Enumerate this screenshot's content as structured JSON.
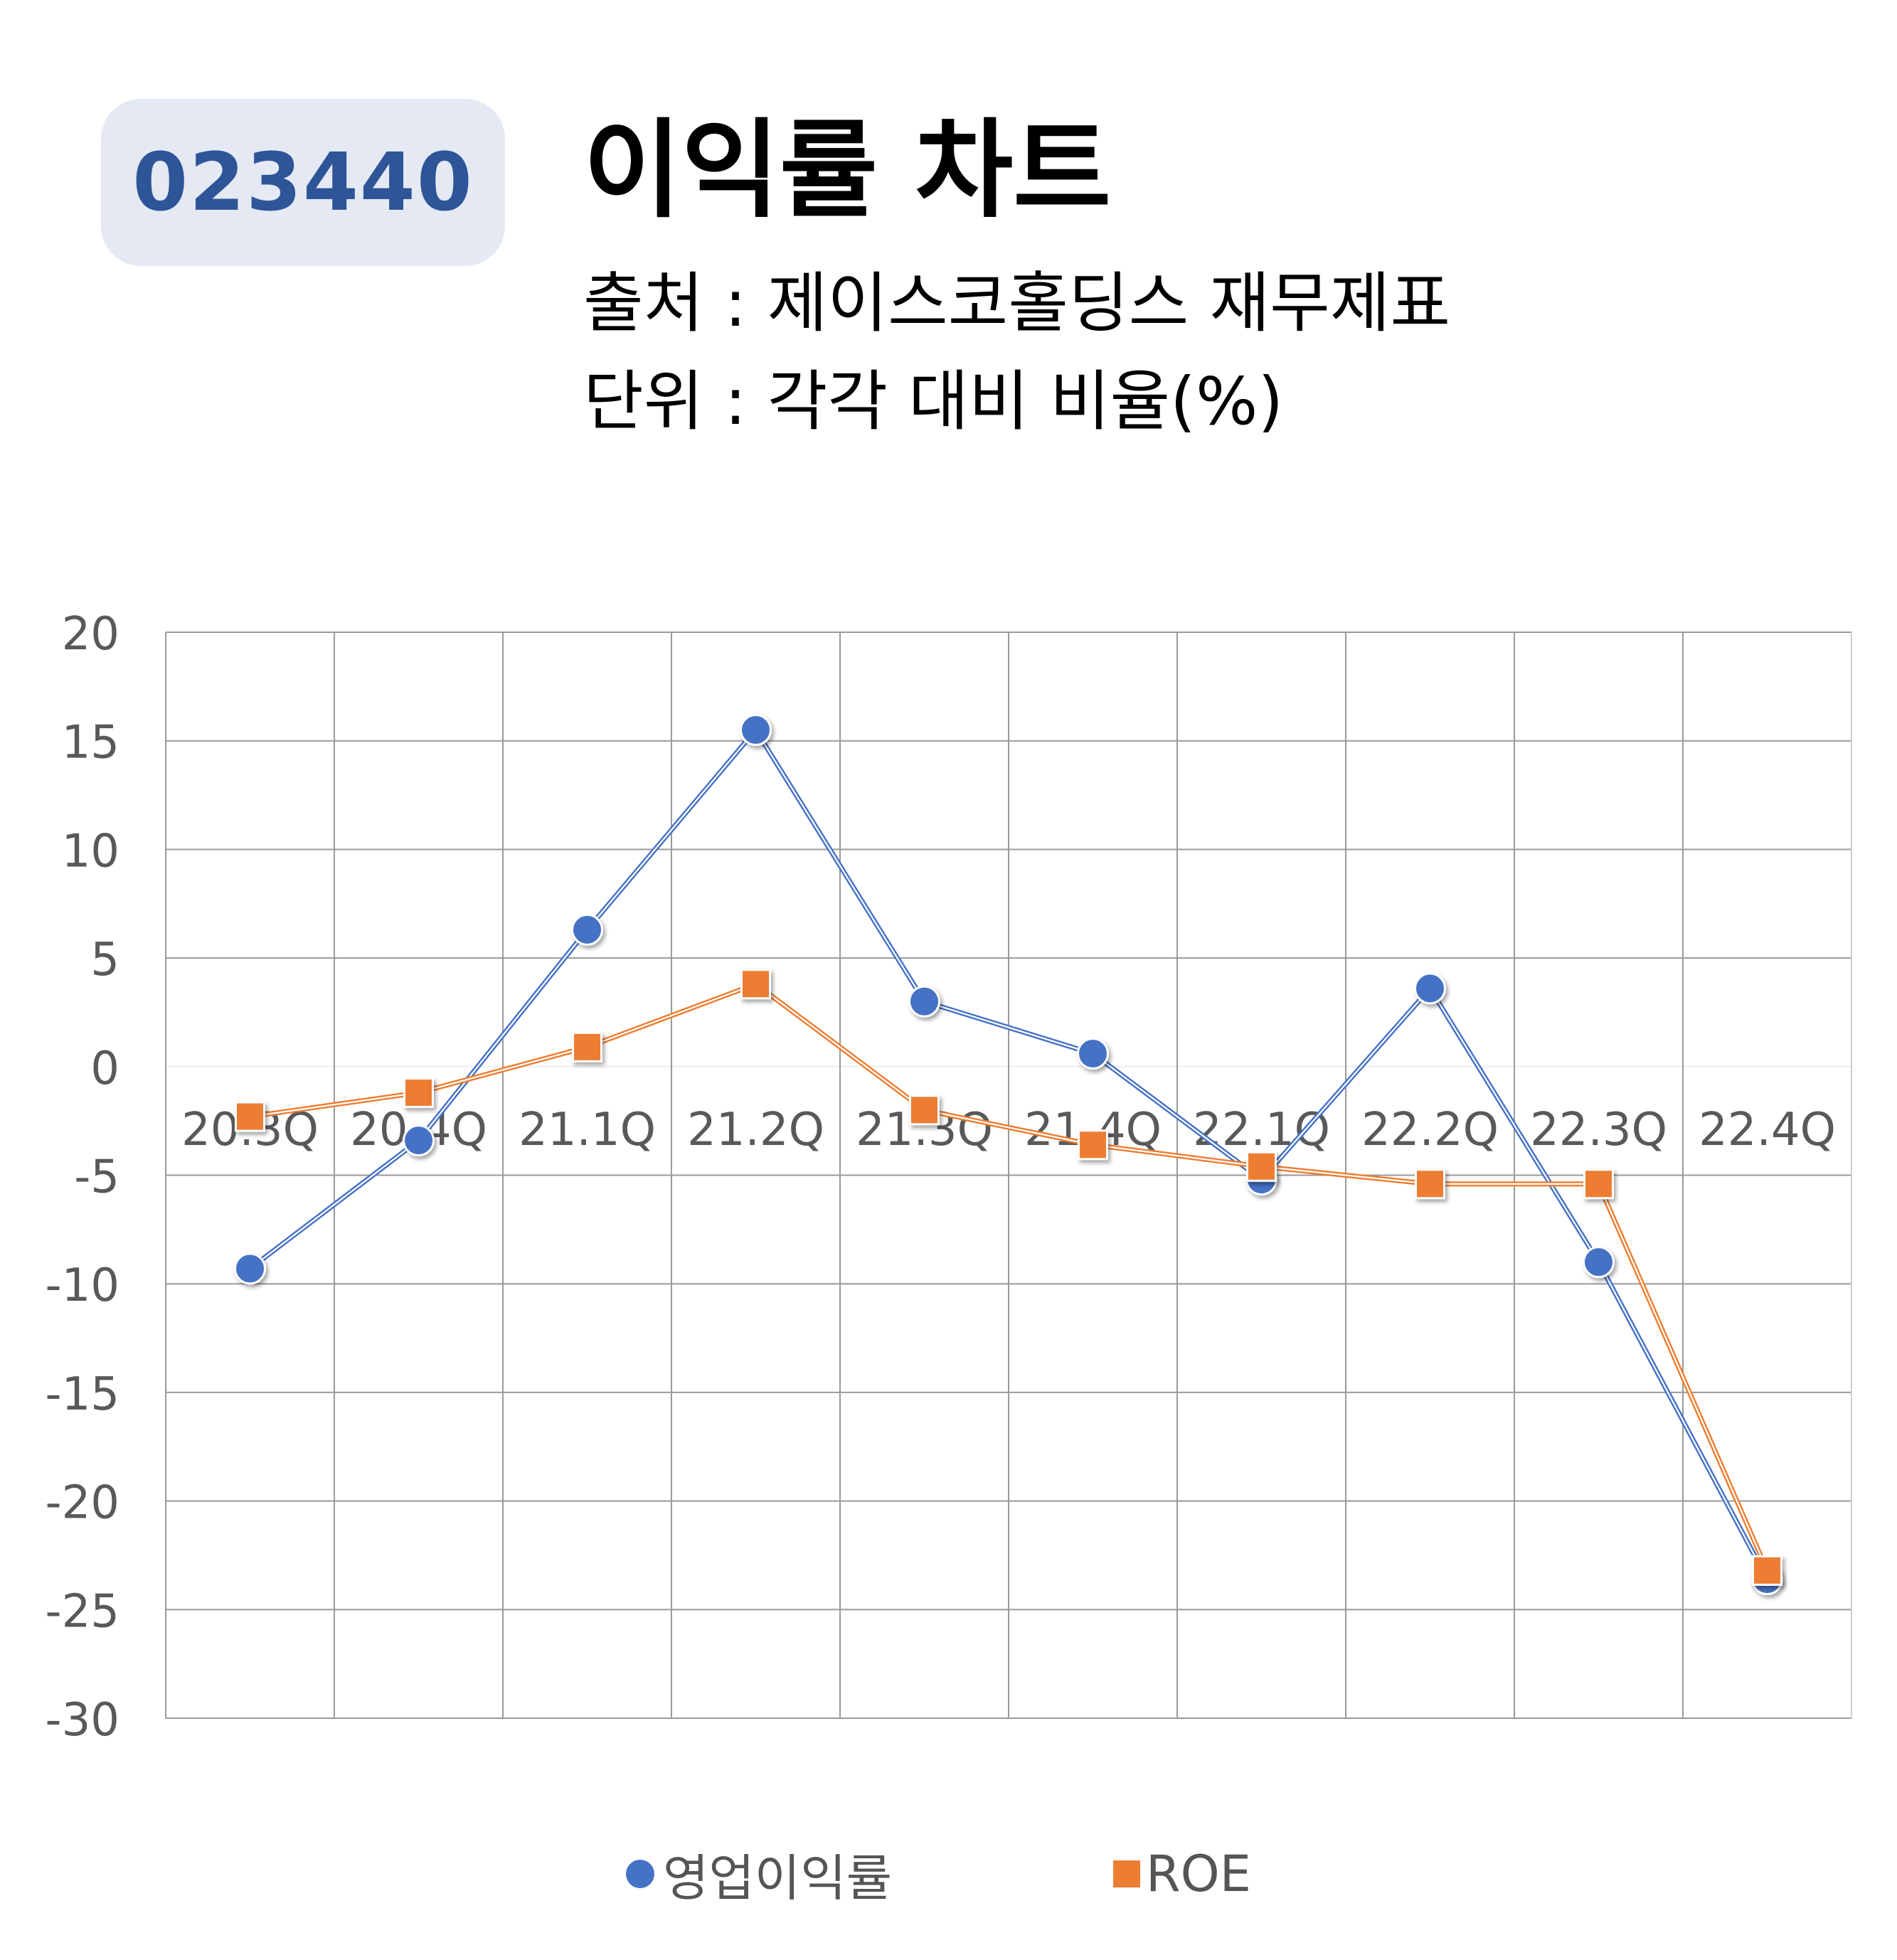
{
  "header": {
    "code": "023440",
    "title": "이익률 차트",
    "source": "출처 : 제이스코홀딩스 재무제표",
    "unit": "단위 : 각각 대비 비율(%)"
  },
  "chart_data": {
    "type": "line",
    "categories": [
      "20.3Q",
      "20.4Q",
      "21.1Q",
      "21.2Q",
      "21.3Q",
      "21.4Q",
      "22.1Q",
      "22.2Q",
      "22.3Q",
      "22.4Q"
    ],
    "series": [
      {
        "name": "영업이익률",
        "color": "#4472c4",
        "marker": "circle",
        "values": [
          -9.3,
          -3.4,
          6.3,
          15.5,
          3.0,
          0.6,
          -5.2,
          3.6,
          -9.0,
          -23.6
        ]
      },
      {
        "name": "ROE",
        "color": "#ed7d31",
        "marker": "square",
        "values": [
          -2.3,
          -1.2,
          0.9,
          3.8,
          -2.0,
          -3.6,
          -4.6,
          -5.4,
          -5.4,
          -23.2
        ]
      }
    ],
    "ylim": [
      -30,
      20
    ],
    "yticks": [
      20,
      15,
      10,
      5,
      0,
      -5,
      -10,
      -15,
      -20,
      -25,
      -30
    ],
    "grid": true,
    "legend_position": "bottom",
    "xlabel": "",
    "ylabel": ""
  }
}
